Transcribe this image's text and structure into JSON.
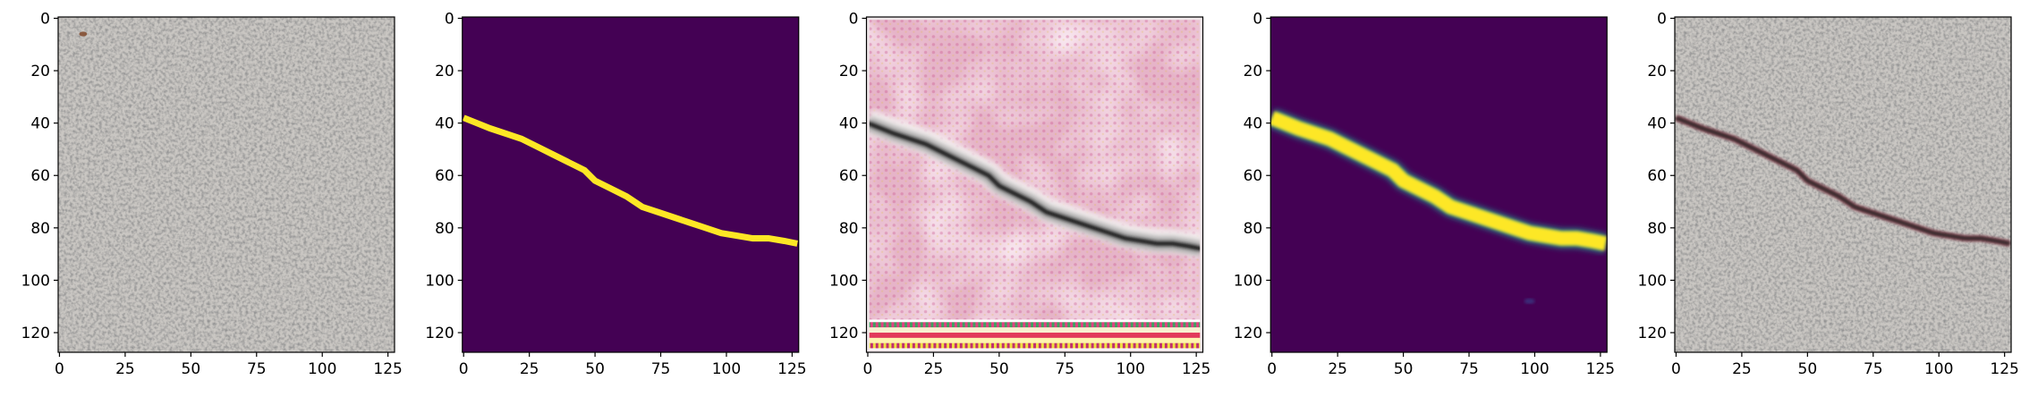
{
  "chart_data": [
    {
      "type": "image",
      "xlim": [
        -0.5,
        127.5
      ],
      "ylim": [
        127.5,
        -0.5
      ],
      "xticks": [
        0,
        25,
        50,
        75,
        100,
        125
      ],
      "yticks": [
        0,
        20,
        40,
        60,
        80,
        100,
        120
      ]
    },
    {
      "type": "image",
      "xlim": [
        -0.5,
        127.5
      ],
      "ylim": [
        127.5,
        -0.5
      ],
      "xticks": [
        0,
        25,
        50,
        75,
        100,
        125
      ],
      "yticks": [
        0,
        20,
        40,
        60,
        80,
        100,
        120
      ]
    },
    {
      "type": "image",
      "xlim": [
        -0.5,
        127.5
      ],
      "ylim": [
        127.5,
        -0.5
      ],
      "xticks": [
        0,
        25,
        50,
        75,
        100,
        125
      ],
      "yticks": [
        0,
        20,
        40,
        60,
        80,
        100,
        120
      ]
    },
    {
      "type": "image",
      "xlim": [
        -0.5,
        127.5
      ],
      "ylim": [
        127.5,
        -0.5
      ],
      "xticks": [
        0,
        25,
        50,
        75,
        100,
        125
      ],
      "yticks": [
        0,
        20,
        40,
        60,
        80,
        100,
        120
      ]
    },
    {
      "type": "image",
      "xlim": [
        -0.5,
        127.5
      ],
      "ylim": [
        127.5,
        -0.5
      ],
      "xticks": [
        0,
        25,
        50,
        75,
        100,
        125
      ],
      "yticks": [
        0,
        20,
        40,
        60,
        80,
        100,
        120
      ]
    }
  ]
}
